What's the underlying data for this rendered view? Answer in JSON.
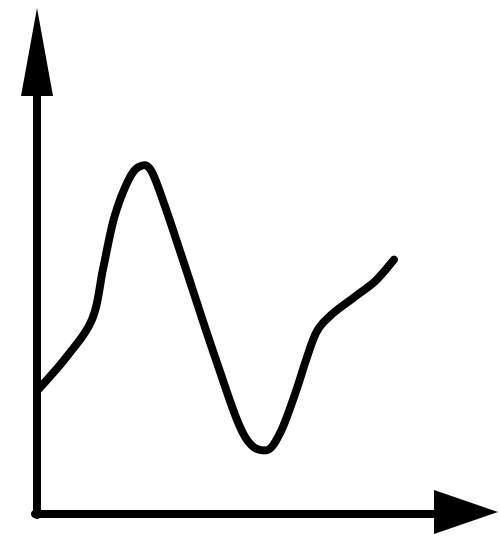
{
  "chart_data": {
    "type": "line",
    "title": "",
    "xlabel": "",
    "ylabel": "",
    "grid": false,
    "legend": "none",
    "xlim": [
      0,
      1
    ],
    "ylim": [
      0,
      1
    ],
    "series": [
      {
        "x": [
          0.0,
          0.08,
          0.15,
          0.18,
          0.21,
          0.25,
          0.28,
          0.31,
          0.35,
          0.4,
          0.48,
          0.56,
          0.62,
          0.66,
          0.7,
          0.73,
          0.76,
          0.8,
          0.86,
          0.92,
          0.97
        ],
        "y": [
          0.29,
          0.37,
          0.46,
          0.58,
          0.7,
          0.79,
          0.82,
          0.81,
          0.72,
          0.59,
          0.38,
          0.19,
          0.15,
          0.19,
          0.28,
          0.36,
          0.43,
          0.47,
          0.51,
          0.55,
          0.6
        ],
        "color": "#000000"
      }
    ],
    "colors": {
      "axis": "#000000",
      "line": "#000000",
      "background": "#ffffff"
    }
  }
}
